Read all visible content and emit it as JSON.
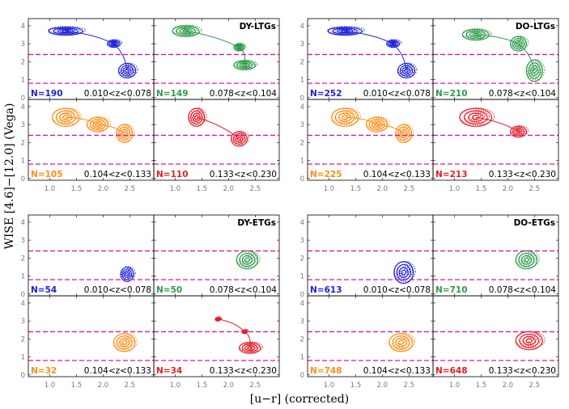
{
  "chart_data": {
    "type": "contour",
    "xlabel": "[u−r] (corrected)",
    "ylabel": "WISE [4.6]−[12.0] (Vega)",
    "xlim": [
      0.6,
      2.95
    ],
    "ylim": [
      -0.1,
      4.4
    ],
    "xticks": [
      "1.0",
      "1.5",
      "2.0",
      "2.5"
    ],
    "yticks": [
      "0",
      "1",
      "2",
      "3",
      "4"
    ],
    "hlines": [
      0.8,
      2.4
    ],
    "hline_color": "#e0189a",
    "bin_colors": [
      "#1f22d8",
      "#2e9a4a",
      "#ff8c14",
      "#e41e25"
    ],
    "redshift_bins": [
      "0.010<z<0.078",
      "0.078<z<0.104",
      "0.104<z<0.133",
      "0.133<z<0.230"
    ],
    "groups": [
      {
        "label": "DY-LTGs",
        "counts": [
          "N=190",
          "N=149",
          "N=105",
          "N=110"
        ],
        "centers": [
          [
            [
              1.3,
              3.7,
              0.32,
              0.22
            ],
            [
              2.2,
              3.0,
              0.12,
              0.2
            ],
            [
              2.45,
              1.5,
              0.16,
              0.4
            ]
          ],
          [
            [
              1.2,
              3.7,
              0.25,
              0.3
            ],
            [
              2.2,
              2.8,
              0.1,
              0.2
            ],
            [
              2.3,
              1.8,
              0.2,
              0.25
            ]
          ],
          [
            [
              1.3,
              3.4,
              0.25,
              0.5
            ],
            [
              1.9,
              3.0,
              0.2,
              0.4
            ],
            [
              2.4,
              2.5,
              0.15,
              0.5
            ]
          ],
          [
            [
              1.4,
              3.4,
              0.15,
              0.5
            ],
            [
              2.2,
              2.2,
              0.15,
              0.4
            ]
          ]
        ]
      },
      {
        "label": "DO-LTGs",
        "counts": [
          "N=252",
          "N=210",
          "N=225",
          "N=213"
        ],
        "centers": [
          [
            [
              1.3,
              3.7,
              0.32,
              0.22
            ],
            [
              2.2,
              3.0,
              0.12,
              0.2
            ],
            [
              2.45,
              1.5,
              0.16,
              0.4
            ]
          ],
          [
            [
              1.4,
              3.5,
              0.25,
              0.3
            ],
            [
              2.2,
              3.0,
              0.15,
              0.4
            ],
            [
              2.5,
              1.5,
              0.15,
              0.6
            ]
          ],
          [
            [
              1.3,
              3.4,
              0.25,
              0.5
            ],
            [
              1.9,
              3.0,
              0.2,
              0.4
            ],
            [
              2.4,
              2.5,
              0.15,
              0.5
            ]
          ],
          [
            [
              1.4,
              3.4,
              0.3,
              0.5
            ],
            [
              2.2,
              2.6,
              0.15,
              0.3
            ]
          ]
        ]
      },
      {
        "label": "DY-ETGs",
        "counts": [
          "N=54",
          "N=50",
          "N=32",
          "N=34"
        ],
        "centers": [
          [
            [
              2.45,
              1.1,
              0.12,
              0.4
            ]
          ],
          [
            [
              2.35,
              1.9,
              0.2,
              0.5
            ]
          ],
          [
            [
              2.4,
              1.8,
              0.2,
              0.5
            ]
          ],
          [
            [
              1.8,
              3.1,
              0.05,
              0.1
            ],
            [
              2.3,
              2.4,
              0.05,
              0.1
            ],
            [
              2.4,
              1.5,
              0.2,
              0.3
            ]
          ]
        ]
      },
      {
        "label": "DO-ETGs",
        "counts": [
          "N=613",
          "N=710",
          "N=748",
          "N=648"
        ],
        "centers": [
          [
            [
              2.4,
              1.2,
              0.18,
              0.6
            ]
          ],
          [
            [
              2.35,
              1.9,
              0.2,
              0.5
            ]
          ],
          [
            [
              2.35,
              1.8,
              0.22,
              0.5
            ]
          ],
          [
            [
              2.4,
              1.9,
              0.25,
              0.5
            ]
          ]
        ]
      }
    ]
  }
}
